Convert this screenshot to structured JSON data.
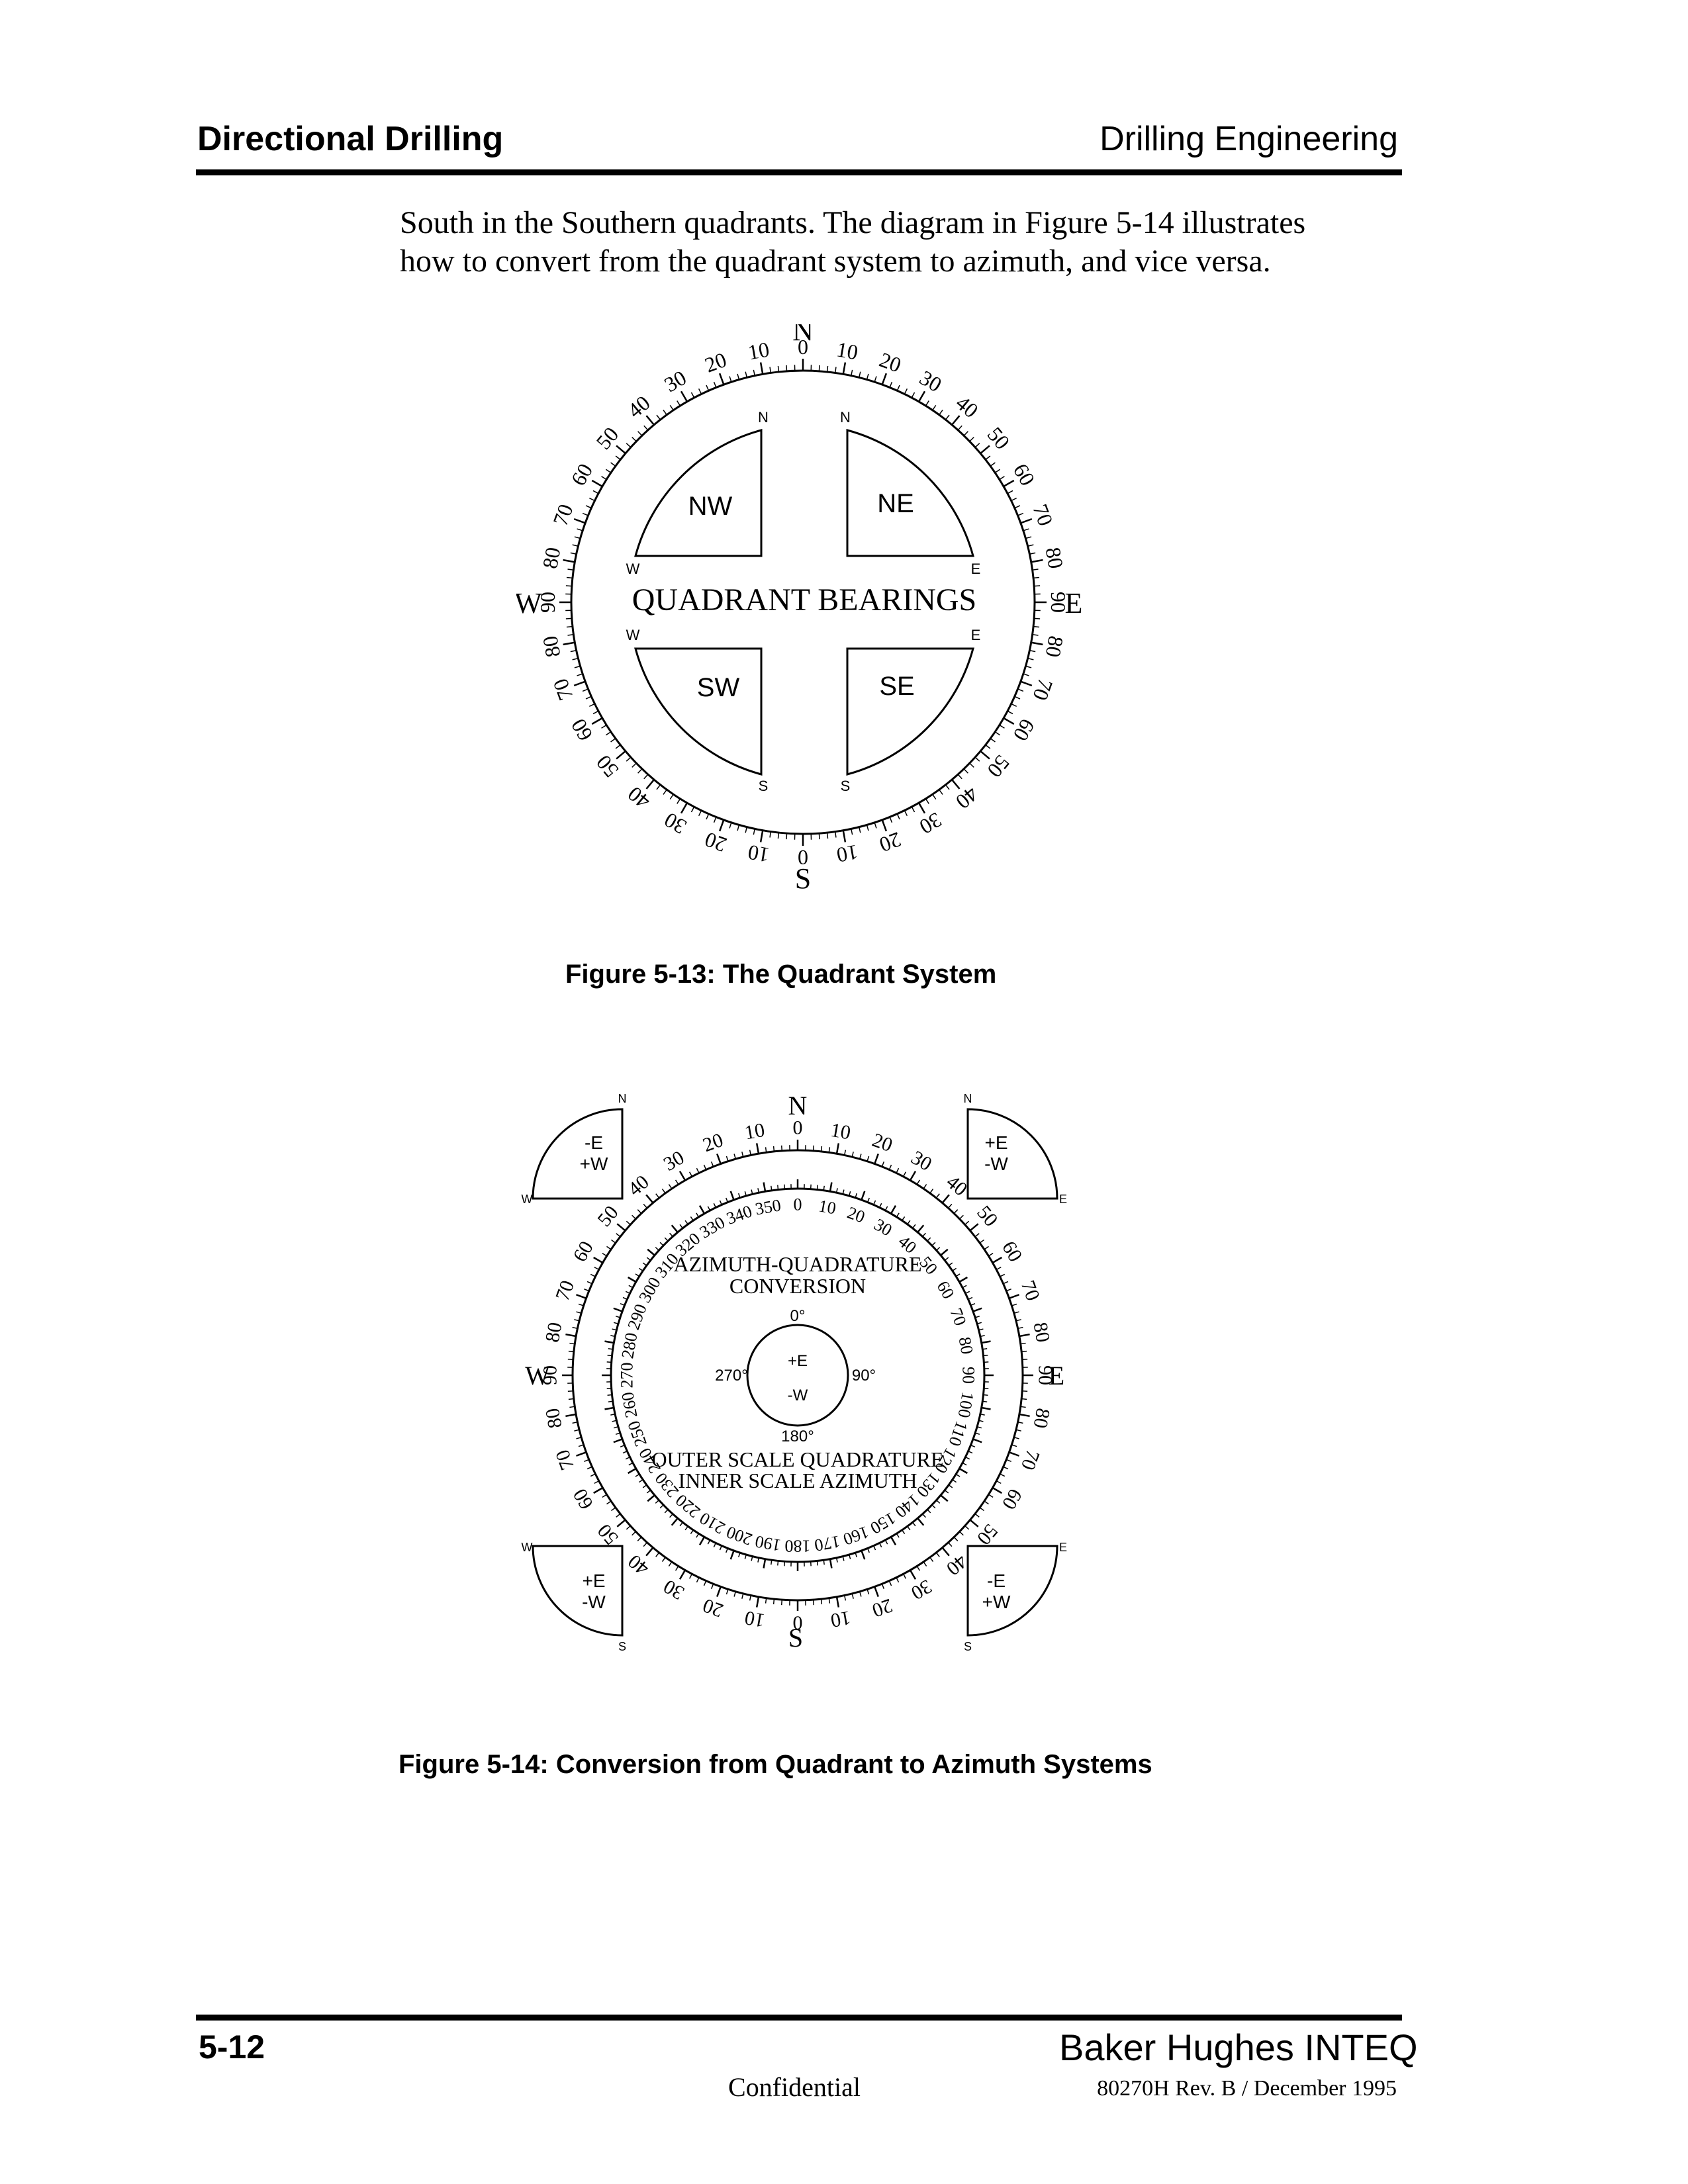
{
  "header": {
    "left": "Directional Drilling",
    "right": "Drilling Engineering"
  },
  "body": {
    "line1": "South in the Southern quadrants. The diagram in Figure 5-14 illustrates",
    "line2": "how to convert from the quadrant system to azimuth, and vice versa."
  },
  "figure1": {
    "caption": "Figure 5-13: The Quadrant System",
    "title": "QUADRANT  BEARINGS",
    "cardinals": {
      "n": "N",
      "s": "S",
      "e": "E",
      "w": "W"
    },
    "quadrant_labels": [
      "NW",
      "NE",
      "SW",
      "SE"
    ],
    "small_letters": {
      "n": "N",
      "s": "S",
      "e": "E",
      "w": "W"
    }
  },
  "figure2": {
    "caption": "Figure 5-14: Conversion from Quadrant to Azimuth Systems",
    "title_line1": "AZIMUTH-QUADRATURE",
    "title_line2": "CONVERSION",
    "legend_line1": "OUTER SCALE QUADRATURE",
    "legend_line2": "INNER SCALE AZIMUTH",
    "cardinals": {
      "n": "N",
      "s": "S",
      "e": "E",
      "w": "W"
    },
    "center": {
      "top": "0°",
      "right": "90°",
      "bottom": "180°",
      "left": "270°",
      "plus": "+E",
      "minus": "-W"
    },
    "corners": {
      "nw": {
        "line1": "-E",
        "line2": "+W"
      },
      "ne": {
        "line1": "+E",
        "line2": "-W"
      },
      "sw": {
        "line1": "+E",
        "line2": "-W"
      },
      "se": {
        "line1": "-E",
        "line2": "+W"
      }
    },
    "small_letters": {
      "n": "N",
      "s": "S",
      "e": "E",
      "w": "W"
    }
  },
  "footer": {
    "page": "5-12",
    "company": "Baker Hughes INTEQ",
    "confidential": "Confidential",
    "revision": "80270H Rev. B / December 1995"
  }
}
